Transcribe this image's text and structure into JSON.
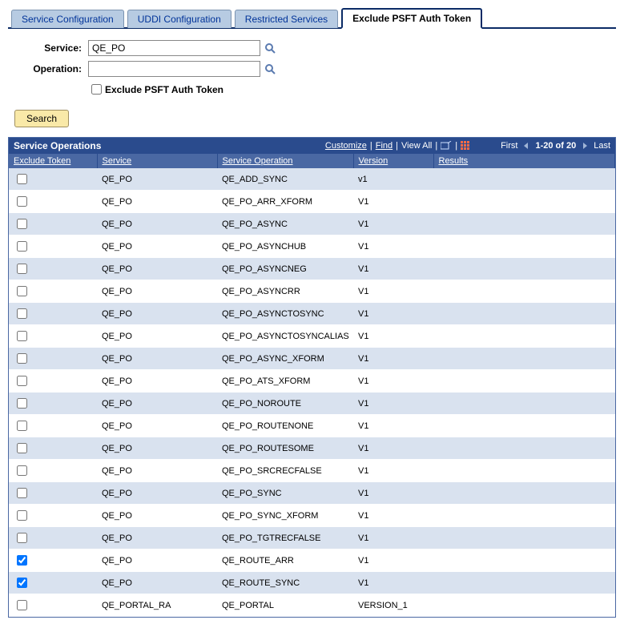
{
  "tabs": [
    {
      "label": "Service Configuration",
      "active": false
    },
    {
      "label": "UDDI Configuration",
      "active": false
    },
    {
      "label": "Restricted Services",
      "active": false
    },
    {
      "label": "Exclude PSFT Auth Token",
      "active": true
    }
  ],
  "form": {
    "service_label": "Service:",
    "service_value": "QE_PO",
    "operation_label": "Operation:",
    "operation_value": "",
    "exclude_label": "Exclude PSFT Auth Token",
    "exclude_checked": false,
    "search_label": "Search"
  },
  "grid": {
    "title": "Service Operations",
    "actions": {
      "customize": "Customize",
      "find": "Find",
      "view_all": "View All"
    },
    "paging": {
      "first": "First",
      "range": "1-20 of 20",
      "last": "Last"
    },
    "columns": {
      "exclude": "Exclude Token",
      "service": "Service",
      "operation": "Service Operation",
      "version": "Version",
      "results": "Results"
    },
    "rows": [
      {
        "checked": false,
        "service": "QE_PO",
        "operation": "QE_ADD_SYNC",
        "version": "v1",
        "results": ""
      },
      {
        "checked": false,
        "service": "QE_PO",
        "operation": "QE_PO_ARR_XFORM",
        "version": "V1",
        "results": ""
      },
      {
        "checked": false,
        "service": "QE_PO",
        "operation": "QE_PO_ASYNC",
        "version": "V1",
        "results": ""
      },
      {
        "checked": false,
        "service": "QE_PO",
        "operation": "QE_PO_ASYNCHUB",
        "version": "V1",
        "results": ""
      },
      {
        "checked": false,
        "service": "QE_PO",
        "operation": "QE_PO_ASYNCNEG",
        "version": "V1",
        "results": ""
      },
      {
        "checked": false,
        "service": "QE_PO",
        "operation": "QE_PO_ASYNCRR",
        "version": "V1",
        "results": ""
      },
      {
        "checked": false,
        "service": "QE_PO",
        "operation": "QE_PO_ASYNCTOSYNC",
        "version": "V1",
        "results": ""
      },
      {
        "checked": false,
        "service": "QE_PO",
        "operation": "QE_PO_ASYNCTOSYNCALIAS",
        "version": "V1",
        "results": ""
      },
      {
        "checked": false,
        "service": "QE_PO",
        "operation": "QE_PO_ASYNC_XFORM",
        "version": "V1",
        "results": ""
      },
      {
        "checked": false,
        "service": "QE_PO",
        "operation": "QE_PO_ATS_XFORM",
        "version": "V1",
        "results": ""
      },
      {
        "checked": false,
        "service": "QE_PO",
        "operation": "QE_PO_NOROUTE",
        "version": "V1",
        "results": ""
      },
      {
        "checked": false,
        "service": "QE_PO",
        "operation": "QE_PO_ROUTENONE",
        "version": "V1",
        "results": ""
      },
      {
        "checked": false,
        "service": "QE_PO",
        "operation": "QE_PO_ROUTESOME",
        "version": "V1",
        "results": ""
      },
      {
        "checked": false,
        "service": "QE_PO",
        "operation": "QE_PO_SRCRECFALSE",
        "version": "V1",
        "results": ""
      },
      {
        "checked": false,
        "service": "QE_PO",
        "operation": "QE_PO_SYNC",
        "version": "V1",
        "results": ""
      },
      {
        "checked": false,
        "service": "QE_PO",
        "operation": "QE_PO_SYNC_XFORM",
        "version": "V1",
        "results": ""
      },
      {
        "checked": false,
        "service": "QE_PO",
        "operation": "QE_PO_TGTRECFALSE",
        "version": "V1",
        "results": ""
      },
      {
        "checked": true,
        "service": "QE_PO",
        "operation": "QE_ROUTE_ARR",
        "version": "V1",
        "results": ""
      },
      {
        "checked": true,
        "service": "QE_PO",
        "operation": "QE_ROUTE_SYNC",
        "version": "V1",
        "results": ""
      },
      {
        "checked": false,
        "service": "QE_PORTAL_RA",
        "operation": "QE_PORTAL",
        "version": "VERSION_1",
        "results": ""
      }
    ]
  }
}
